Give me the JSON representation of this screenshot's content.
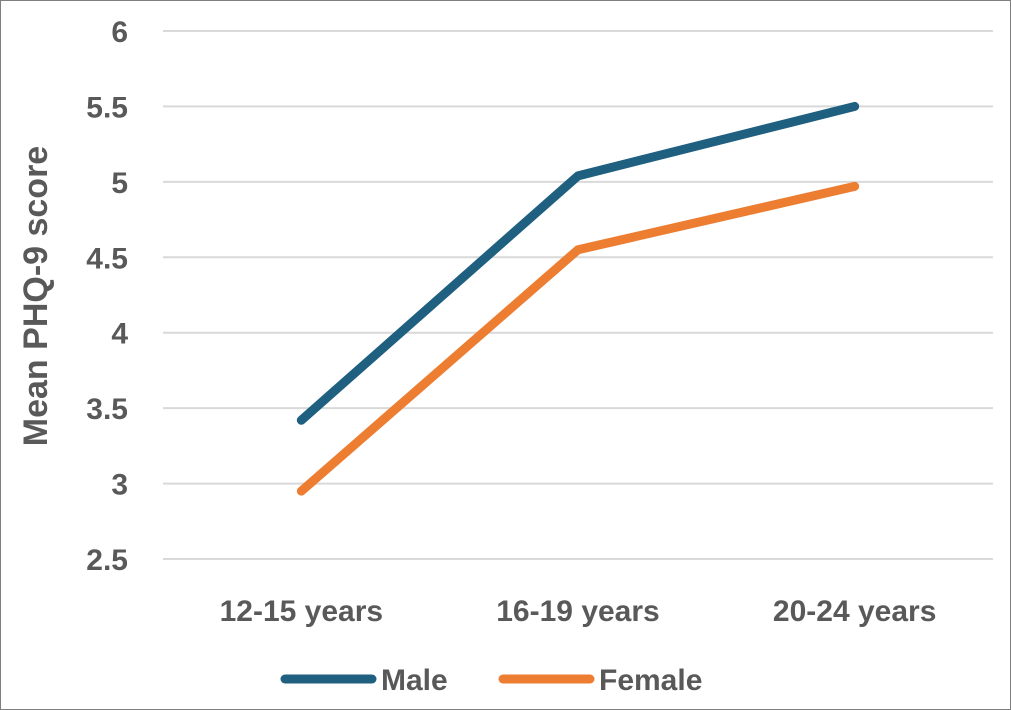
{
  "chart_data": {
    "type": "line",
    "title": "",
    "xlabel": "",
    "ylabel": "Mean PHQ-9 score",
    "categories": [
      "12-15 years",
      "16-19 years",
      "20-24 years"
    ],
    "ylim": [
      2.5,
      6
    ],
    "yticks": [
      "2.5",
      "3",
      "3.5",
      "4",
      "4.5",
      "5",
      "5.5",
      "6"
    ],
    "grid": true,
    "legend_position": "bottom",
    "series": [
      {
        "name": "Male",
        "color": "#1f5f7f",
        "values": [
          3.42,
          5.04,
          5.5
        ]
      },
      {
        "name": "Female",
        "color": "#ed7d31",
        "values": [
          2.95,
          4.55,
          4.97
        ]
      }
    ]
  }
}
